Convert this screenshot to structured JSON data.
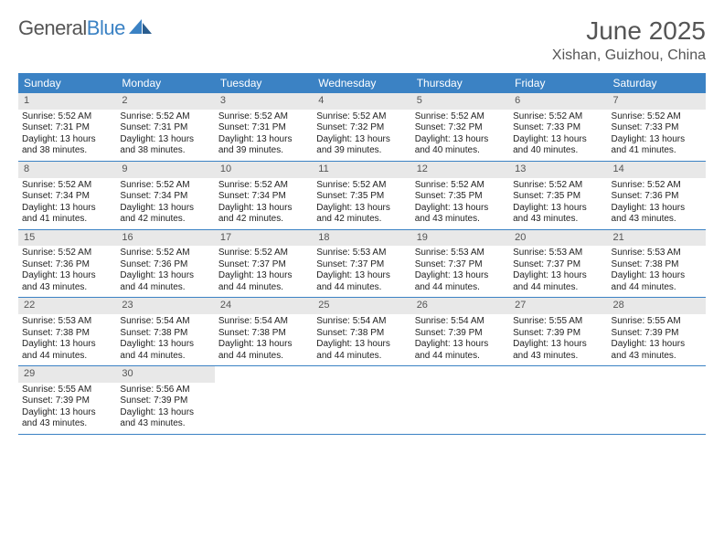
{
  "brand": {
    "part1": "General",
    "part2": "Blue"
  },
  "header": {
    "title": "June 2025",
    "location": "Xishan, Guizhou, China"
  },
  "colors": {
    "header_bg": "#3b82c4",
    "daynum_bg": "#e8e8e8",
    "text": "#555555",
    "body_text": "#222222",
    "rule": "#3b82c4"
  },
  "fonts": {
    "title_size": 28,
    "location_size": 16,
    "weekday_size": 12,
    "daynum_size": 11,
    "body_size": 10
  },
  "weekdays": [
    "Sunday",
    "Monday",
    "Tuesday",
    "Wednesday",
    "Thursday",
    "Friday",
    "Saturday"
  ],
  "weeks": [
    [
      {
        "n": "1",
        "sr": "Sunrise: 5:52 AM",
        "ss": "Sunset: 7:31 PM",
        "dl1": "Daylight: 13 hours",
        "dl2": "and 38 minutes."
      },
      {
        "n": "2",
        "sr": "Sunrise: 5:52 AM",
        "ss": "Sunset: 7:31 PM",
        "dl1": "Daylight: 13 hours",
        "dl2": "and 38 minutes."
      },
      {
        "n": "3",
        "sr": "Sunrise: 5:52 AM",
        "ss": "Sunset: 7:31 PM",
        "dl1": "Daylight: 13 hours",
        "dl2": "and 39 minutes."
      },
      {
        "n": "4",
        "sr": "Sunrise: 5:52 AM",
        "ss": "Sunset: 7:32 PM",
        "dl1": "Daylight: 13 hours",
        "dl2": "and 39 minutes."
      },
      {
        "n": "5",
        "sr": "Sunrise: 5:52 AM",
        "ss": "Sunset: 7:32 PM",
        "dl1": "Daylight: 13 hours",
        "dl2": "and 40 minutes."
      },
      {
        "n": "6",
        "sr": "Sunrise: 5:52 AM",
        "ss": "Sunset: 7:33 PM",
        "dl1": "Daylight: 13 hours",
        "dl2": "and 40 minutes."
      },
      {
        "n": "7",
        "sr": "Sunrise: 5:52 AM",
        "ss": "Sunset: 7:33 PM",
        "dl1": "Daylight: 13 hours",
        "dl2": "and 41 minutes."
      }
    ],
    [
      {
        "n": "8",
        "sr": "Sunrise: 5:52 AM",
        "ss": "Sunset: 7:34 PM",
        "dl1": "Daylight: 13 hours",
        "dl2": "and 41 minutes."
      },
      {
        "n": "9",
        "sr": "Sunrise: 5:52 AM",
        "ss": "Sunset: 7:34 PM",
        "dl1": "Daylight: 13 hours",
        "dl2": "and 42 minutes."
      },
      {
        "n": "10",
        "sr": "Sunrise: 5:52 AM",
        "ss": "Sunset: 7:34 PM",
        "dl1": "Daylight: 13 hours",
        "dl2": "and 42 minutes."
      },
      {
        "n": "11",
        "sr": "Sunrise: 5:52 AM",
        "ss": "Sunset: 7:35 PM",
        "dl1": "Daylight: 13 hours",
        "dl2": "and 42 minutes."
      },
      {
        "n": "12",
        "sr": "Sunrise: 5:52 AM",
        "ss": "Sunset: 7:35 PM",
        "dl1": "Daylight: 13 hours",
        "dl2": "and 43 minutes."
      },
      {
        "n": "13",
        "sr": "Sunrise: 5:52 AM",
        "ss": "Sunset: 7:35 PM",
        "dl1": "Daylight: 13 hours",
        "dl2": "and 43 minutes."
      },
      {
        "n": "14",
        "sr": "Sunrise: 5:52 AM",
        "ss": "Sunset: 7:36 PM",
        "dl1": "Daylight: 13 hours",
        "dl2": "and 43 minutes."
      }
    ],
    [
      {
        "n": "15",
        "sr": "Sunrise: 5:52 AM",
        "ss": "Sunset: 7:36 PM",
        "dl1": "Daylight: 13 hours",
        "dl2": "and 43 minutes."
      },
      {
        "n": "16",
        "sr": "Sunrise: 5:52 AM",
        "ss": "Sunset: 7:36 PM",
        "dl1": "Daylight: 13 hours",
        "dl2": "and 44 minutes."
      },
      {
        "n": "17",
        "sr": "Sunrise: 5:52 AM",
        "ss": "Sunset: 7:37 PM",
        "dl1": "Daylight: 13 hours",
        "dl2": "and 44 minutes."
      },
      {
        "n": "18",
        "sr": "Sunrise: 5:53 AM",
        "ss": "Sunset: 7:37 PM",
        "dl1": "Daylight: 13 hours",
        "dl2": "and 44 minutes."
      },
      {
        "n": "19",
        "sr": "Sunrise: 5:53 AM",
        "ss": "Sunset: 7:37 PM",
        "dl1": "Daylight: 13 hours",
        "dl2": "and 44 minutes."
      },
      {
        "n": "20",
        "sr": "Sunrise: 5:53 AM",
        "ss": "Sunset: 7:37 PM",
        "dl1": "Daylight: 13 hours",
        "dl2": "and 44 minutes."
      },
      {
        "n": "21",
        "sr": "Sunrise: 5:53 AM",
        "ss": "Sunset: 7:38 PM",
        "dl1": "Daylight: 13 hours",
        "dl2": "and 44 minutes."
      }
    ],
    [
      {
        "n": "22",
        "sr": "Sunrise: 5:53 AM",
        "ss": "Sunset: 7:38 PM",
        "dl1": "Daylight: 13 hours",
        "dl2": "and 44 minutes."
      },
      {
        "n": "23",
        "sr": "Sunrise: 5:54 AM",
        "ss": "Sunset: 7:38 PM",
        "dl1": "Daylight: 13 hours",
        "dl2": "and 44 minutes."
      },
      {
        "n": "24",
        "sr": "Sunrise: 5:54 AM",
        "ss": "Sunset: 7:38 PM",
        "dl1": "Daylight: 13 hours",
        "dl2": "and 44 minutes."
      },
      {
        "n": "25",
        "sr": "Sunrise: 5:54 AM",
        "ss": "Sunset: 7:38 PM",
        "dl1": "Daylight: 13 hours",
        "dl2": "and 44 minutes."
      },
      {
        "n": "26",
        "sr": "Sunrise: 5:54 AM",
        "ss": "Sunset: 7:39 PM",
        "dl1": "Daylight: 13 hours",
        "dl2": "and 44 minutes."
      },
      {
        "n": "27",
        "sr": "Sunrise: 5:55 AM",
        "ss": "Sunset: 7:39 PM",
        "dl1": "Daylight: 13 hours",
        "dl2": "and 43 minutes."
      },
      {
        "n": "28",
        "sr": "Sunrise: 5:55 AM",
        "ss": "Sunset: 7:39 PM",
        "dl1": "Daylight: 13 hours",
        "dl2": "and 43 minutes."
      }
    ],
    [
      {
        "n": "29",
        "sr": "Sunrise: 5:55 AM",
        "ss": "Sunset: 7:39 PM",
        "dl1": "Daylight: 13 hours",
        "dl2": "and 43 minutes."
      },
      {
        "n": "30",
        "sr": "Sunrise: 5:56 AM",
        "ss": "Sunset: 7:39 PM",
        "dl1": "Daylight: 13 hours",
        "dl2": "and 43 minutes."
      },
      {
        "empty": true
      },
      {
        "empty": true
      },
      {
        "empty": true
      },
      {
        "empty": true
      },
      {
        "empty": true
      }
    ]
  ]
}
